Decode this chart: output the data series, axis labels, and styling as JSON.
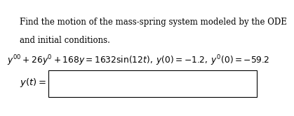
{
  "line1": "Find the motion of the mass-spring system modeled by the ODE",
  "line2": "and initial conditions.",
  "equation": "$y'' + 26y' + 168y = 1632\\sin(12t),\\; y(0) = -1.2,\\; y'(0) = -59.2$",
  "label": "$y(t) =$",
  "bg_color": "#ffffff",
  "text_color": "#000000",
  "box_color": "#000000",
  "font_size_body": 8.5,
  "font_size_eq": 8.8,
  "font_size_label": 9.5
}
